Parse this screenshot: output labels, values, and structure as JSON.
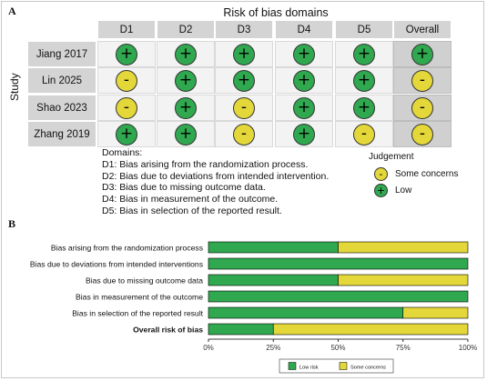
{
  "panel_a": {
    "label": "A",
    "title": "Risk of bias domains",
    "y_axis_label": "Study",
    "columns": [
      "D1",
      "D2",
      "D3",
      "D4",
      "D5",
      "Overall"
    ],
    "rows": [
      {
        "study": "Jiang 2017",
        "judgements": [
          "low",
          "low",
          "low",
          "low",
          "low",
          "low"
        ]
      },
      {
        "study": "Lin 2025",
        "judgements": [
          "some",
          "low",
          "low",
          "low",
          "low",
          "some"
        ]
      },
      {
        "study": "Shao 2023",
        "judgements": [
          "some",
          "low",
          "some",
          "low",
          "low",
          "some"
        ]
      },
      {
        "study": "Zhang 2019",
        "judgements": [
          "low",
          "low",
          "some",
          "low",
          "some",
          "some"
        ]
      }
    ],
    "symbols": {
      "low": "+",
      "some": "-"
    },
    "domains_heading": "Domains:",
    "domains": [
      "D1: Bias arising from the randomization process.",
      "D2: Bias due to deviations from intended intervention.",
      "D3: Bias due to missing outcome data.",
      "D4: Bias in measurement of the outcome.",
      "D5: Bias in selection of the reported result."
    ],
    "legend_title": "Judgement",
    "legend": [
      {
        "key": "some",
        "label": "Some concerns"
      },
      {
        "key": "low",
        "label": "Low"
      }
    ]
  },
  "panel_b": {
    "label": "B"
  },
  "colors": {
    "low": "#2fa84f",
    "some": "#e3d73a",
    "header": "#d4d4d4",
    "overall": "#d0d0d0"
  },
  "chart_data": {
    "type": "bar",
    "orientation": "horizontal",
    "stacked": true,
    "categories": [
      "Bias arising from the randomization process",
      "Bias due to deviations from intended interventions",
      "Bias due to missing outcome data",
      "Bias in measurement of the outcome",
      "Bias in selection of the reported result",
      "Overall risk of bias"
    ],
    "bold_categories": [
      "Overall risk of bias"
    ],
    "series": [
      {
        "name": "Low risk",
        "values": [
          50,
          100,
          50,
          100,
          75,
          25
        ]
      },
      {
        "name": "Some concerns",
        "values": [
          50,
          0,
          50,
          0,
          25,
          75
        ]
      }
    ],
    "xlim": [
      0,
      100
    ],
    "x_ticks": [
      "0%",
      "25%",
      "50%",
      "75%",
      "100%"
    ],
    "title": "",
    "xlabel": "",
    "ylabel": "",
    "legend_position": "bottom"
  }
}
